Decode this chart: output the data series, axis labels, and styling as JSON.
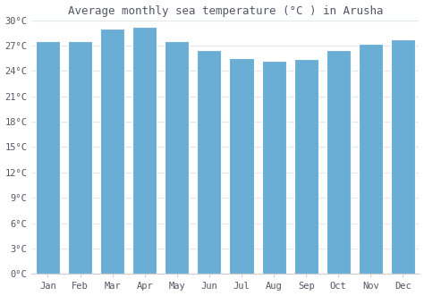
{
  "title": "Average monthly sea temperature (°C ) in Arusha",
  "months": [
    "Jan",
    "Feb",
    "Mar",
    "Apr",
    "May",
    "Jun",
    "Jul",
    "Aug",
    "Sep",
    "Oct",
    "Nov",
    "Dec"
  ],
  "values": [
    27.5,
    27.5,
    29.0,
    29.2,
    27.5,
    26.5,
    25.5,
    25.2,
    25.4,
    26.5,
    27.2,
    27.7
  ],
  "bar_color": "#6aaed6",
  "background_color": "#ffffff",
  "plot_bg_color": "#ffffff",
  "grid_color": "#e0e8f0",
  "spine_color": "#cccccc",
  "ylim": [
    0,
    30
  ],
  "ytick_step": 3,
  "title_fontsize": 9,
  "tick_fontsize": 7.5,
  "font_color": "#555566"
}
